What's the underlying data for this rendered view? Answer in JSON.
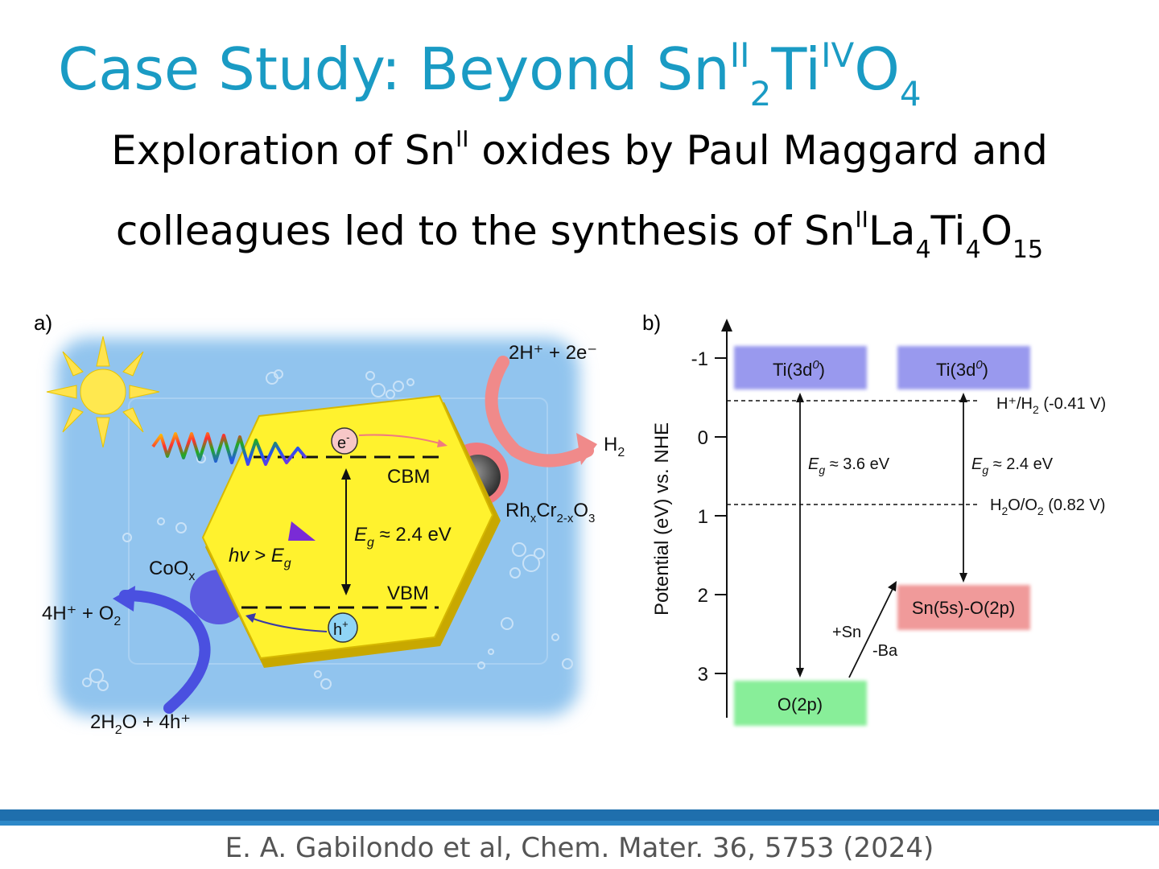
{
  "slide": {
    "title": {
      "prefix": "Case Study: Beyond Sn",
      "sup1": "II",
      "sub1": "2",
      "ti": "Ti",
      "sup2": "IV",
      "o": "O",
      "sub2": "4"
    },
    "subtitle": {
      "line1_a": "Exploration of Sn",
      "line1_sup": "II",
      "line1_b": " oxides by Paul Maggard and",
      "line2_a": "colleagues led to the synthesis of Sn",
      "line2_sup": "II",
      "line2_la": "La",
      "line2_sub1": "4",
      "line2_ti": "Ti",
      "line2_sub2": "4",
      "line2_o": "O",
      "line2_sub3": "15"
    },
    "citation": "E. A. Gabilondo et al, Chem. Mater. 36, 5753 (2024)",
    "colors": {
      "title": "#1a9bc4",
      "footer_bar": "#1f6fad"
    }
  },
  "panel_a": {
    "label": "a)",
    "electron": "e",
    "electron_sup": "-",
    "hole": "h",
    "hole_sup": "+",
    "cbm": "CBM",
    "vbm": "VBM",
    "eg_e": "E",
    "eg_g": "g",
    "eg_value": " ≈ 2.4 eV",
    "hv": "hv > E",
    "hv_sub": "g",
    "h2_reaction": "2H⁺ + 2e⁻",
    "h2": "H",
    "h2_sub": "2",
    "rhcr_rh": "Rh",
    "rhcr_x": "x",
    "rhcr_cr": "Cr",
    "rhcr_sub": "2-x",
    "rhcr_o": "O",
    "rhcr_3": "3",
    "coox": "CoO",
    "coox_sub": "x",
    "o2_product": "4H⁺ + O",
    "o2_sub": "2",
    "water_a": "2H",
    "water_sub": "2",
    "water_b": "O + 4h⁺"
  },
  "panel_b": {
    "label": "b)",
    "ylabel": "Potential (eV) vs. NHE",
    "yticks": [
      "-1",
      "0",
      "1",
      "2",
      "3"
    ],
    "ti_left": "Ti(3d",
    "ti_left_sup": "0",
    "ti_right": "Ti(3d",
    "ti_right_sup": "0",
    "o2p": "O(2p)",
    "sn5s": "Sn(5s)-O(2p)",
    "h_level": "H⁺/H",
    "h_level_sub": "2",
    "h_level_val": " (-0.41 V)",
    "o_level": "H",
    "o_level_sub": "2",
    "o_level_mid": "O/O",
    "o_level_sub2": "2",
    "o_level_val": " (0.82 V)",
    "eg_left": " ≈ 3.6 eV",
    "eg_right": " ≈ 2.4 eV",
    "plus_sn": "+Sn",
    "minus_ba": "-Ba",
    "colors": {
      "ti_box": "#9999ee",
      "o_box": "#88ee99",
      "sn_box": "#f09a9a"
    }
  }
}
